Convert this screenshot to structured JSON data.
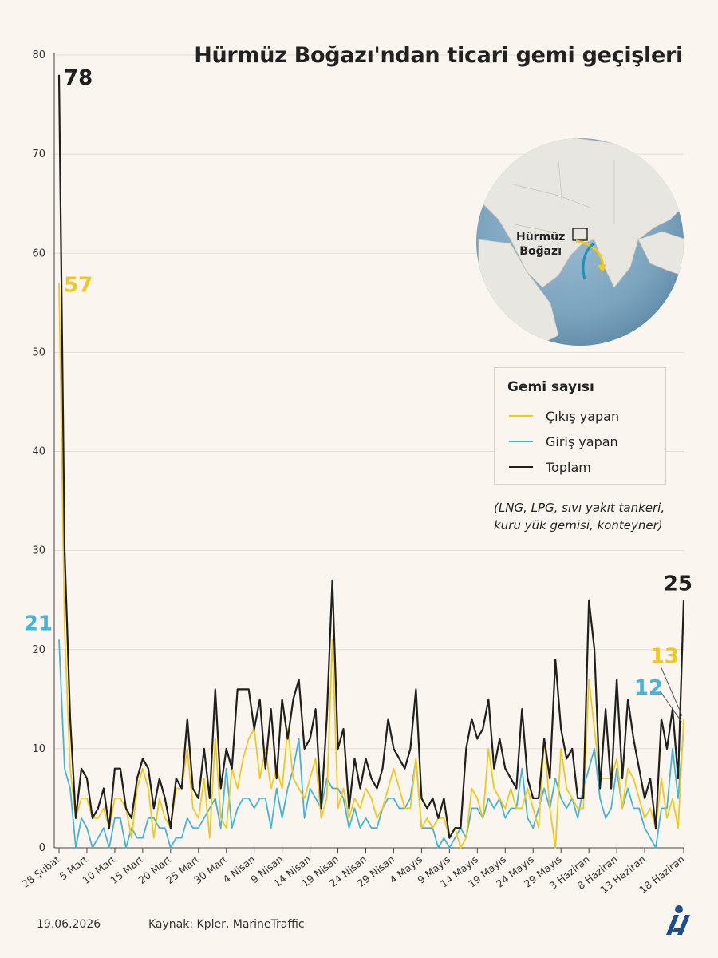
{
  "title": "Hürmüz Boğazı'ndan ticari gemi geçişleri",
  "legend": {
    "title": "Gemi sayısı",
    "items": [
      {
        "label": "Çıkış yapan",
        "color": "#f2c81e"
      },
      {
        "label": "Giriş yapan",
        "color": "#45b4d9"
      },
      {
        "label": "Toplam",
        "color": "#1f1f1f"
      }
    ]
  },
  "note": "(LNG, LPG, sıvı yakıt tankeri, kuru yük gemisi, konteyner)",
  "map": {
    "label_line1": "Hürmüz",
    "label_line2": "Boğazı"
  },
  "footer": {
    "date": "19.06.2026",
    "source": "Kaynak: Kpler, MarineTraffic",
    "logo": "AA"
  },
  "annotations": {
    "toplam_start": "78",
    "cikis_start": "57",
    "giris_start": "21",
    "toplam_end": "25",
    "cikis_end": "13",
    "giris_end": "12"
  },
  "chart_data": {
    "type": "line",
    "xlabel": "",
    "ylabel": "",
    "ylim": [
      0,
      80
    ],
    "yticks": [
      0,
      10,
      20,
      30,
      40,
      50,
      60,
      70,
      80
    ],
    "grid": true,
    "x_start": "28 Şubat",
    "x_end": "18 Haziran",
    "x_tick_labels": [
      "28 Şubat",
      "5 Mart",
      "10 Mart",
      "15 Mart",
      "20 Mart",
      "25 Mart",
      "30 Mart",
      "4 Nisan",
      "9 Nisan",
      "14 Nisan",
      "19 Nisan",
      "24 Nisan",
      "29 Nisan",
      "4 Mayıs",
      "9 Mayıs",
      "14 Mayıs",
      "19 Mayıs",
      "24 Mayıs",
      "29 Mayıs",
      "3 Haziran",
      "8 Haziran",
      "13 Haziran",
      "18 Haziran"
    ],
    "series": [
      {
        "name": "Toplam",
        "color": "#1f1f1f",
        "values": [
          78,
          30,
          13,
          3,
          8,
          7,
          3,
          4,
          6,
          2,
          8,
          8,
          4,
          3,
          7,
          9,
          8,
          4,
          7,
          5,
          2,
          7,
          6,
          13,
          6,
          5,
          10,
          5,
          16,
          6,
          10,
          8,
          16,
          16,
          16,
          12,
          15,
          8,
          14,
          7,
          15,
          11,
          15,
          17,
          10,
          11,
          14,
          4,
          13,
          27,
          10,
          12,
          4,
          9,
          6,
          9,
          7,
          6,
          8,
          13,
          10,
          9,
          8,
          10,
          16,
          5,
          4,
          5,
          3,
          5,
          1,
          2,
          2,
          10,
          13,
          11,
          12,
          15,
          8,
          11,
          8,
          7,
          6,
          14,
          7,
          5,
          5,
          11,
          7,
          19,
          12,
          9,
          10,
          5,
          5,
          25,
          20,
          6,
          14,
          6,
          17,
          7,
          15,
          11,
          8,
          5,
          7,
          2,
          13,
          10,
          14,
          7,
          25
        ]
      },
      {
        "name": "Çıkış yapan",
        "color": "#f2c81e",
        "values": [
          57,
          22,
          8,
          3,
          5,
          5,
          3,
          3,
          4,
          2,
          5,
          5,
          4,
          1,
          6,
          8,
          6,
          1,
          5,
          3,
          2,
          6,
          6,
          10,
          4,
          3,
          7,
          1,
          11,
          3,
          2,
          8,
          6,
          9,
          11,
          12,
          7,
          10,
          6,
          8,
          6,
          12,
          7,
          6,
          5,
          7,
          9,
          3,
          5,
          21,
          4,
          6,
          3,
          5,
          4,
          6,
          5,
          3,
          4,
          6,
          8,
          6,
          4,
          4,
          9,
          2,
          3,
          2,
          3,
          3,
          1,
          2,
          0,
          1,
          6,
          5,
          3,
          10,
          6,
          5,
          4,
          6,
          4,
          4,
          6,
          4,
          2,
          11,
          4,
          0,
          10,
          6,
          5,
          4,
          4,
          17,
          12,
          7,
          7,
          7,
          9,
          4,
          8,
          7,
          5,
          3,
          4,
          2,
          7,
          3,
          5,
          2,
          13
        ]
      },
      {
        "name": "Giriş yapan",
        "color": "#45b4d9",
        "values": [
          21,
          8,
          6,
          0,
          3,
          2,
          0,
          1,
          2,
          0,
          3,
          3,
          0,
          2,
          1,
          1,
          3,
          3,
          2,
          2,
          0,
          1,
          1,
          3,
          2,
          2,
          3,
          4,
          5,
          2,
          8,
          2,
          4,
          5,
          5,
          4,
          5,
          5,
          2,
          6,
          3,
          6,
          8,
          11,
          3,
          6,
          5,
          4,
          7,
          6,
          6,
          5,
          2,
          4,
          2,
          3,
          2,
          2,
          4,
          5,
          5,
          4,
          4,
          5,
          9,
          2,
          2,
          2,
          0,
          1,
          0,
          1,
          2,
          1,
          4,
          4,
          3,
          5,
          4,
          5,
          3,
          4,
          4,
          8,
          3,
          2,
          4,
          6,
          4,
          7,
          5,
          4,
          5,
          3,
          6,
          8,
          10,
          5,
          3,
          4,
          8,
          4,
          6,
          4,
          4,
          2,
          1,
          0,
          4,
          4,
          10,
          5,
          12
        ]
      }
    ]
  }
}
